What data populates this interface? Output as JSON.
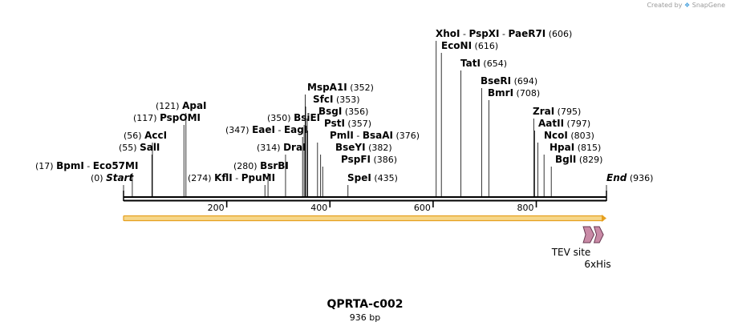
{
  "credit": {
    "prefix": "Created by",
    "brand": "SnapGene"
  },
  "title": "QPRTA-c002",
  "subtitle": "936 bp",
  "sequence_length": 936,
  "ticks": [
    {
      "value": 200,
      "label": "200"
    },
    {
      "value": 400,
      "label": "400"
    },
    {
      "value": 600,
      "label": "600"
    },
    {
      "value": 800,
      "label": "800"
    }
  ],
  "colors": {
    "backbone": "#000000",
    "orf_fill": "#f6d78a",
    "orf_stroke": "#e6a020",
    "feature_fill": "#c98aa6",
    "feature_stroke": "#6a3a52",
    "credit_logo": "#4aa3df"
  },
  "sites": [
    {
      "id": "start",
      "label_parts": [
        "Start"
      ],
      "pos": 0,
      "pos_label": "(0)",
      "italic": true
    },
    {
      "id": "bpmi",
      "label_parts": [
        "BpmI",
        "Eco57MI"
      ],
      "pos": 17,
      "pos_label": "(17)"
    },
    {
      "id": "sali",
      "label_parts": [
        "SalI"
      ],
      "pos": 55,
      "pos_label": "(55)"
    },
    {
      "id": "acci",
      "label_parts": [
        "AccI"
      ],
      "pos": 56,
      "pos_label": "(56)"
    },
    {
      "id": "pspomi",
      "label_parts": [
        "PspOMI"
      ],
      "pos": 117,
      "pos_label": "(117)"
    },
    {
      "id": "apai",
      "label_parts": [
        "ApaI"
      ],
      "pos": 121,
      "pos_label": "(121)"
    },
    {
      "id": "kfli",
      "label_parts": [
        "KflI",
        "PpuMI"
      ],
      "pos": 274,
      "pos_label": "(274)"
    },
    {
      "id": "bsrbi",
      "label_parts": [
        "BsrBI"
      ],
      "pos": 280,
      "pos_label": "(280)"
    },
    {
      "id": "drai",
      "label_parts": [
        "DraI"
      ],
      "pos": 314,
      "pos_label": "(314)"
    },
    {
      "id": "eaei",
      "label_parts": [
        "EaeI",
        "EagI"
      ],
      "pos": 347,
      "pos_label": "(347)"
    },
    {
      "id": "bsiei",
      "label_parts": [
        "BsiEI"
      ],
      "pos": 350,
      "pos_label": "(350)"
    },
    {
      "id": "mspa1i",
      "label_parts": [
        "MspA1I"
      ],
      "pos": 352,
      "pos_label": "(352)"
    },
    {
      "id": "sfci",
      "label_parts": [
        "SfcI"
      ],
      "pos": 353,
      "pos_label": "(353)"
    },
    {
      "id": "bsgi",
      "label_parts": [
        "BsgI"
      ],
      "pos": 356,
      "pos_label": "(356)"
    },
    {
      "id": "psti",
      "label_parts": [
        "PstI"
      ],
      "pos": 357,
      "pos_label": "(357)"
    },
    {
      "id": "pmli",
      "label_parts": [
        "PmlI",
        "BsaAI"
      ],
      "pos": 376,
      "pos_label": "(376)"
    },
    {
      "id": "bseyi",
      "label_parts": [
        "BseYI"
      ],
      "pos": 382,
      "pos_label": "(382)"
    },
    {
      "id": "pspfi",
      "label_parts": [
        "PspFI"
      ],
      "pos": 386,
      "pos_label": "(386)"
    },
    {
      "id": "spei",
      "label_parts": [
        "SpeI"
      ],
      "pos": 435,
      "pos_label": "(435)"
    },
    {
      "id": "xhoi",
      "label_parts": [
        "XhoI",
        "PspXI",
        "PaeR7I"
      ],
      "pos": 606,
      "pos_label": "(606)"
    },
    {
      "id": "econi",
      "label_parts": [
        "EcoNI"
      ],
      "pos": 616,
      "pos_label": "(616)"
    },
    {
      "id": "tati",
      "label_parts": [
        "TatI"
      ],
      "pos": 654,
      "pos_label": "(654)"
    },
    {
      "id": "bseri",
      "label_parts": [
        "BseRI"
      ],
      "pos": 694,
      "pos_label": "(694)"
    },
    {
      "id": "bmri",
      "label_parts": [
        "BmrI"
      ],
      "pos": 708,
      "pos_label": "(708)"
    },
    {
      "id": "zrai",
      "label_parts": [
        "ZraI"
      ],
      "pos": 795,
      "pos_label": "(795)"
    },
    {
      "id": "aatii",
      "label_parts": [
        "AatII"
      ],
      "pos": 797,
      "pos_label": "(797)"
    },
    {
      "id": "ncoi",
      "label_parts": [
        "NcoI"
      ],
      "pos": 803,
      "pos_label": "(803)"
    },
    {
      "id": "hpai",
      "label_parts": [
        "HpaI"
      ],
      "pos": 815,
      "pos_label": "(815)"
    },
    {
      "id": "bgli",
      "label_parts": [
        "BglI"
      ],
      "pos": 829,
      "pos_label": "(829)"
    },
    {
      "id": "end",
      "label_parts": [
        "End"
      ],
      "pos": 936,
      "pos_label": "(936)",
      "italic": true
    }
  ],
  "features": [
    {
      "id": "orf",
      "name": "",
      "start": 1,
      "end": 936,
      "kind": "orf"
    },
    {
      "id": "tev",
      "name": "TEV site",
      "start": 892,
      "end": 912,
      "kind": "arrow"
    },
    {
      "id": "his",
      "name": "6xHis",
      "start": 913,
      "end": 930,
      "kind": "arrow"
    }
  ]
}
